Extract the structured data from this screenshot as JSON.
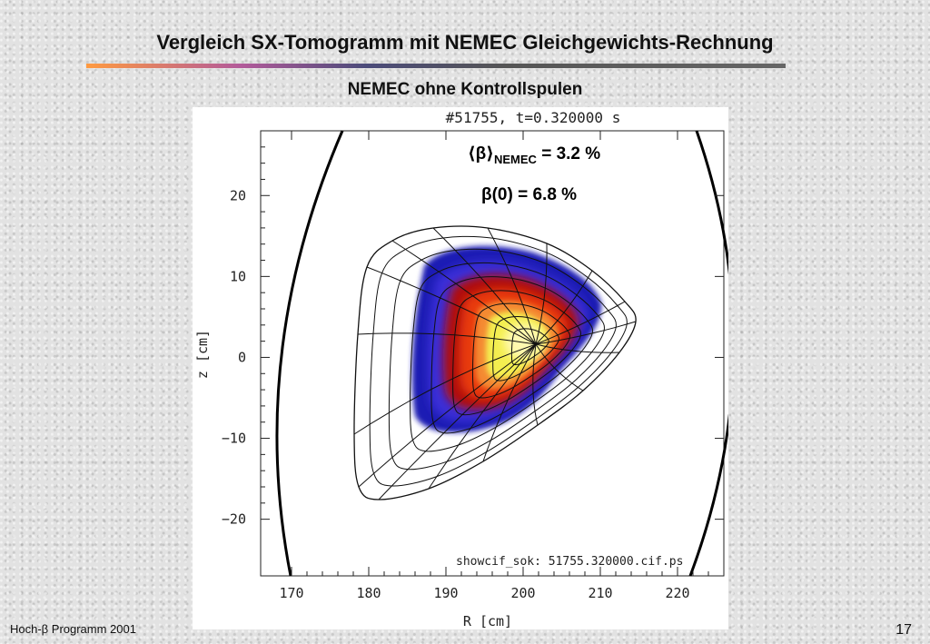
{
  "slide": {
    "title": "Vergleich SX-Tomogramm mit NEMEC Gleichgewichts-Rechnung",
    "subtitle": "NEMEC ohne Kontrollspulen"
  },
  "figure": {
    "shot_label": "#51755, t=0.320000 s",
    "file_label": "showcif_sok: 51755.320000.cif.ps",
    "beta_avg": {
      "label": "⟨β⟩",
      "subscript": "NEMEC",
      "value": " = 3.2 %"
    },
    "beta_zero": {
      "label": "β(0) = 6.8 %"
    },
    "x_axis": {
      "label": "R [cm]",
      "ticks": [
        "170",
        "180",
        "190",
        "200",
        "210",
        "220"
      ],
      "range": [
        166,
        226
      ]
    },
    "y_axis": {
      "label": "z [cm]",
      "ticks": [
        "20",
        "10",
        "0",
        "−10",
        "−20"
      ],
      "range": [
        -27,
        28
      ]
    },
    "colors": {
      "outer": "#1a1ab4",
      "ring1": "#3b2fd8",
      "ring2": "#b01010",
      "ring3": "#e83a10",
      "ring4": "#f48a30",
      "core": "#f4ee50",
      "center": "#fff9b0"
    }
  },
  "footer": {
    "left": "Hoch-β Programm 2001",
    "page": "17"
  }
}
